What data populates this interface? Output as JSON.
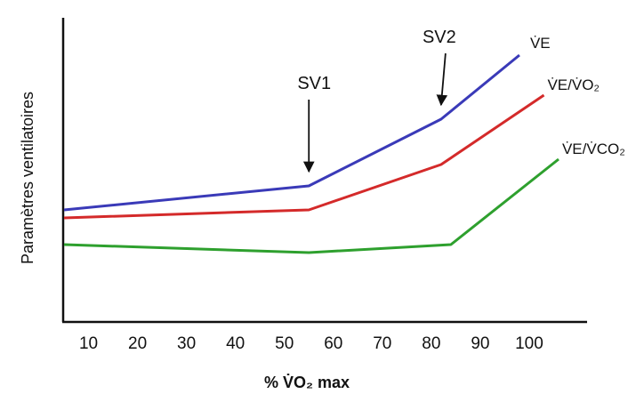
{
  "chart_data": {
    "type": "line",
    "title": "",
    "xlabel": "% V̇O₂ max",
    "ylabel": "Paramètres ventilatoires",
    "x_ticks": [
      10,
      20,
      30,
      40,
      50,
      60,
      70,
      80,
      90,
      100
    ],
    "xlim": [
      5,
      110
    ],
    "ylim": [
      0,
      100
    ],
    "y_ticks_visible": false,
    "grid": false,
    "series": [
      {
        "name": "V̇E",
        "color": "#3a3ab8",
        "points": [
          [
            5,
            38
          ],
          [
            55,
            47
          ],
          [
            82,
            72
          ],
          [
            98,
            96
          ]
        ]
      },
      {
        "name": "V̇E/V̇O₂",
        "color": "#d42a2a",
        "points": [
          [
            5,
            35
          ],
          [
            55,
            38
          ],
          [
            82,
            55
          ],
          [
            103,
            81
          ]
        ]
      },
      {
        "name": "V̇E/V̇CO₂",
        "color": "#2ea02e",
        "points": [
          [
            5,
            25
          ],
          [
            55,
            22
          ],
          [
            84,
            25
          ],
          [
            106,
            57
          ]
        ]
      }
    ],
    "annotations": [
      {
        "text": "SV1",
        "x": 55,
        "y": 47,
        "arrow": true
      },
      {
        "text": "SV2",
        "x": 82,
        "y": 72,
        "arrow": true
      }
    ]
  }
}
